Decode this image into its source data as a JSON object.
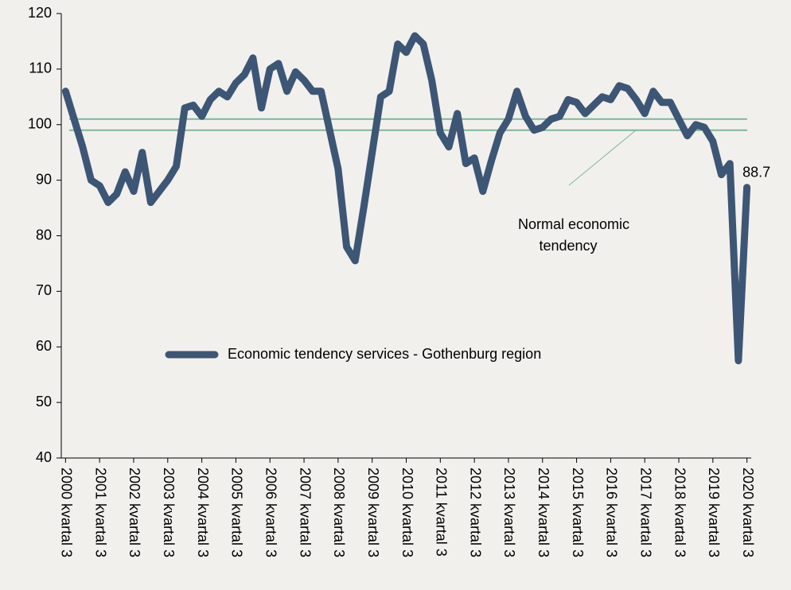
{
  "chart_data": {
    "type": "line",
    "categories": [
      "2000 kvartal 3",
      null,
      null,
      null,
      "2001 kvartal 3",
      null,
      null,
      null,
      "2002 kvartal 3",
      null,
      null,
      null,
      "2003 kvartal 3",
      null,
      null,
      null,
      "2004 kvartal 3",
      null,
      null,
      null,
      "2005 kvartal 3",
      null,
      null,
      null,
      "2006 kvartal 3",
      null,
      null,
      null,
      "2007 kvartal 3",
      null,
      null,
      null,
      "2008 kvartal 3",
      null,
      null,
      null,
      "2009 kvartal 3",
      null,
      null,
      null,
      "2010 kvartal 3",
      null,
      null,
      null,
      "2011 kvartal 3",
      null,
      null,
      null,
      "2012 kvartal 3",
      null,
      null,
      null,
      "2013 kvartal 3",
      null,
      null,
      null,
      "2014 kvartal 3",
      null,
      null,
      null,
      "2015 kvartal 3",
      null,
      null,
      null,
      "2016 kvartal 3",
      null,
      null,
      null,
      "2017 kvartal 3",
      null,
      null,
      null,
      "2018 kvartal 3",
      null,
      null,
      null,
      "2019 kvartal 3",
      null,
      null,
      null,
      "2020 kvartal 3"
    ],
    "series": [
      {
        "name": "Economic tendency services - Gothenburg region",
        "color": "#3d5675",
        "values": [
          106,
          101,
          96,
          90,
          89,
          86,
          87.5,
          91.5,
          88,
          95,
          86,
          88,
          90,
          92.5,
          103,
          103.5,
          101.5,
          104.5,
          106,
          105,
          107.5,
          109,
          112,
          103,
          110,
          111,
          106,
          109.5,
          108,
          106,
          106,
          99,
          92,
          78,
          75.5,
          85,
          95,
          105,
          106,
          114.5,
          113,
          116,
          114.5,
          108,
          98.5,
          96,
          102,
          93,
          94,
          88,
          93.5,
          98.5,
          101,
          106,
          101.5,
          99,
          99.5,
          101,
          101.5,
          104.5,
          104,
          102,
          103.5,
          105,
          104.5,
          107,
          106.5,
          104.5,
          102,
          106,
          104,
          104,
          101,
          98,
          100,
          99.5,
          97,
          91,
          93,
          57.5,
          88.7
        ]
      }
    ],
    "reference_lines": [
      99,
      101
    ],
    "reference_color": "#7fb69a",
    "annotation": [
      "Normal economic",
      "tendency"
    ],
    "ylim": [
      40,
      120
    ],
    "yticks": [
      40,
      50,
      60,
      70,
      80,
      90,
      100,
      110,
      120
    ],
    "legend": "center",
    "grid": false
  }
}
